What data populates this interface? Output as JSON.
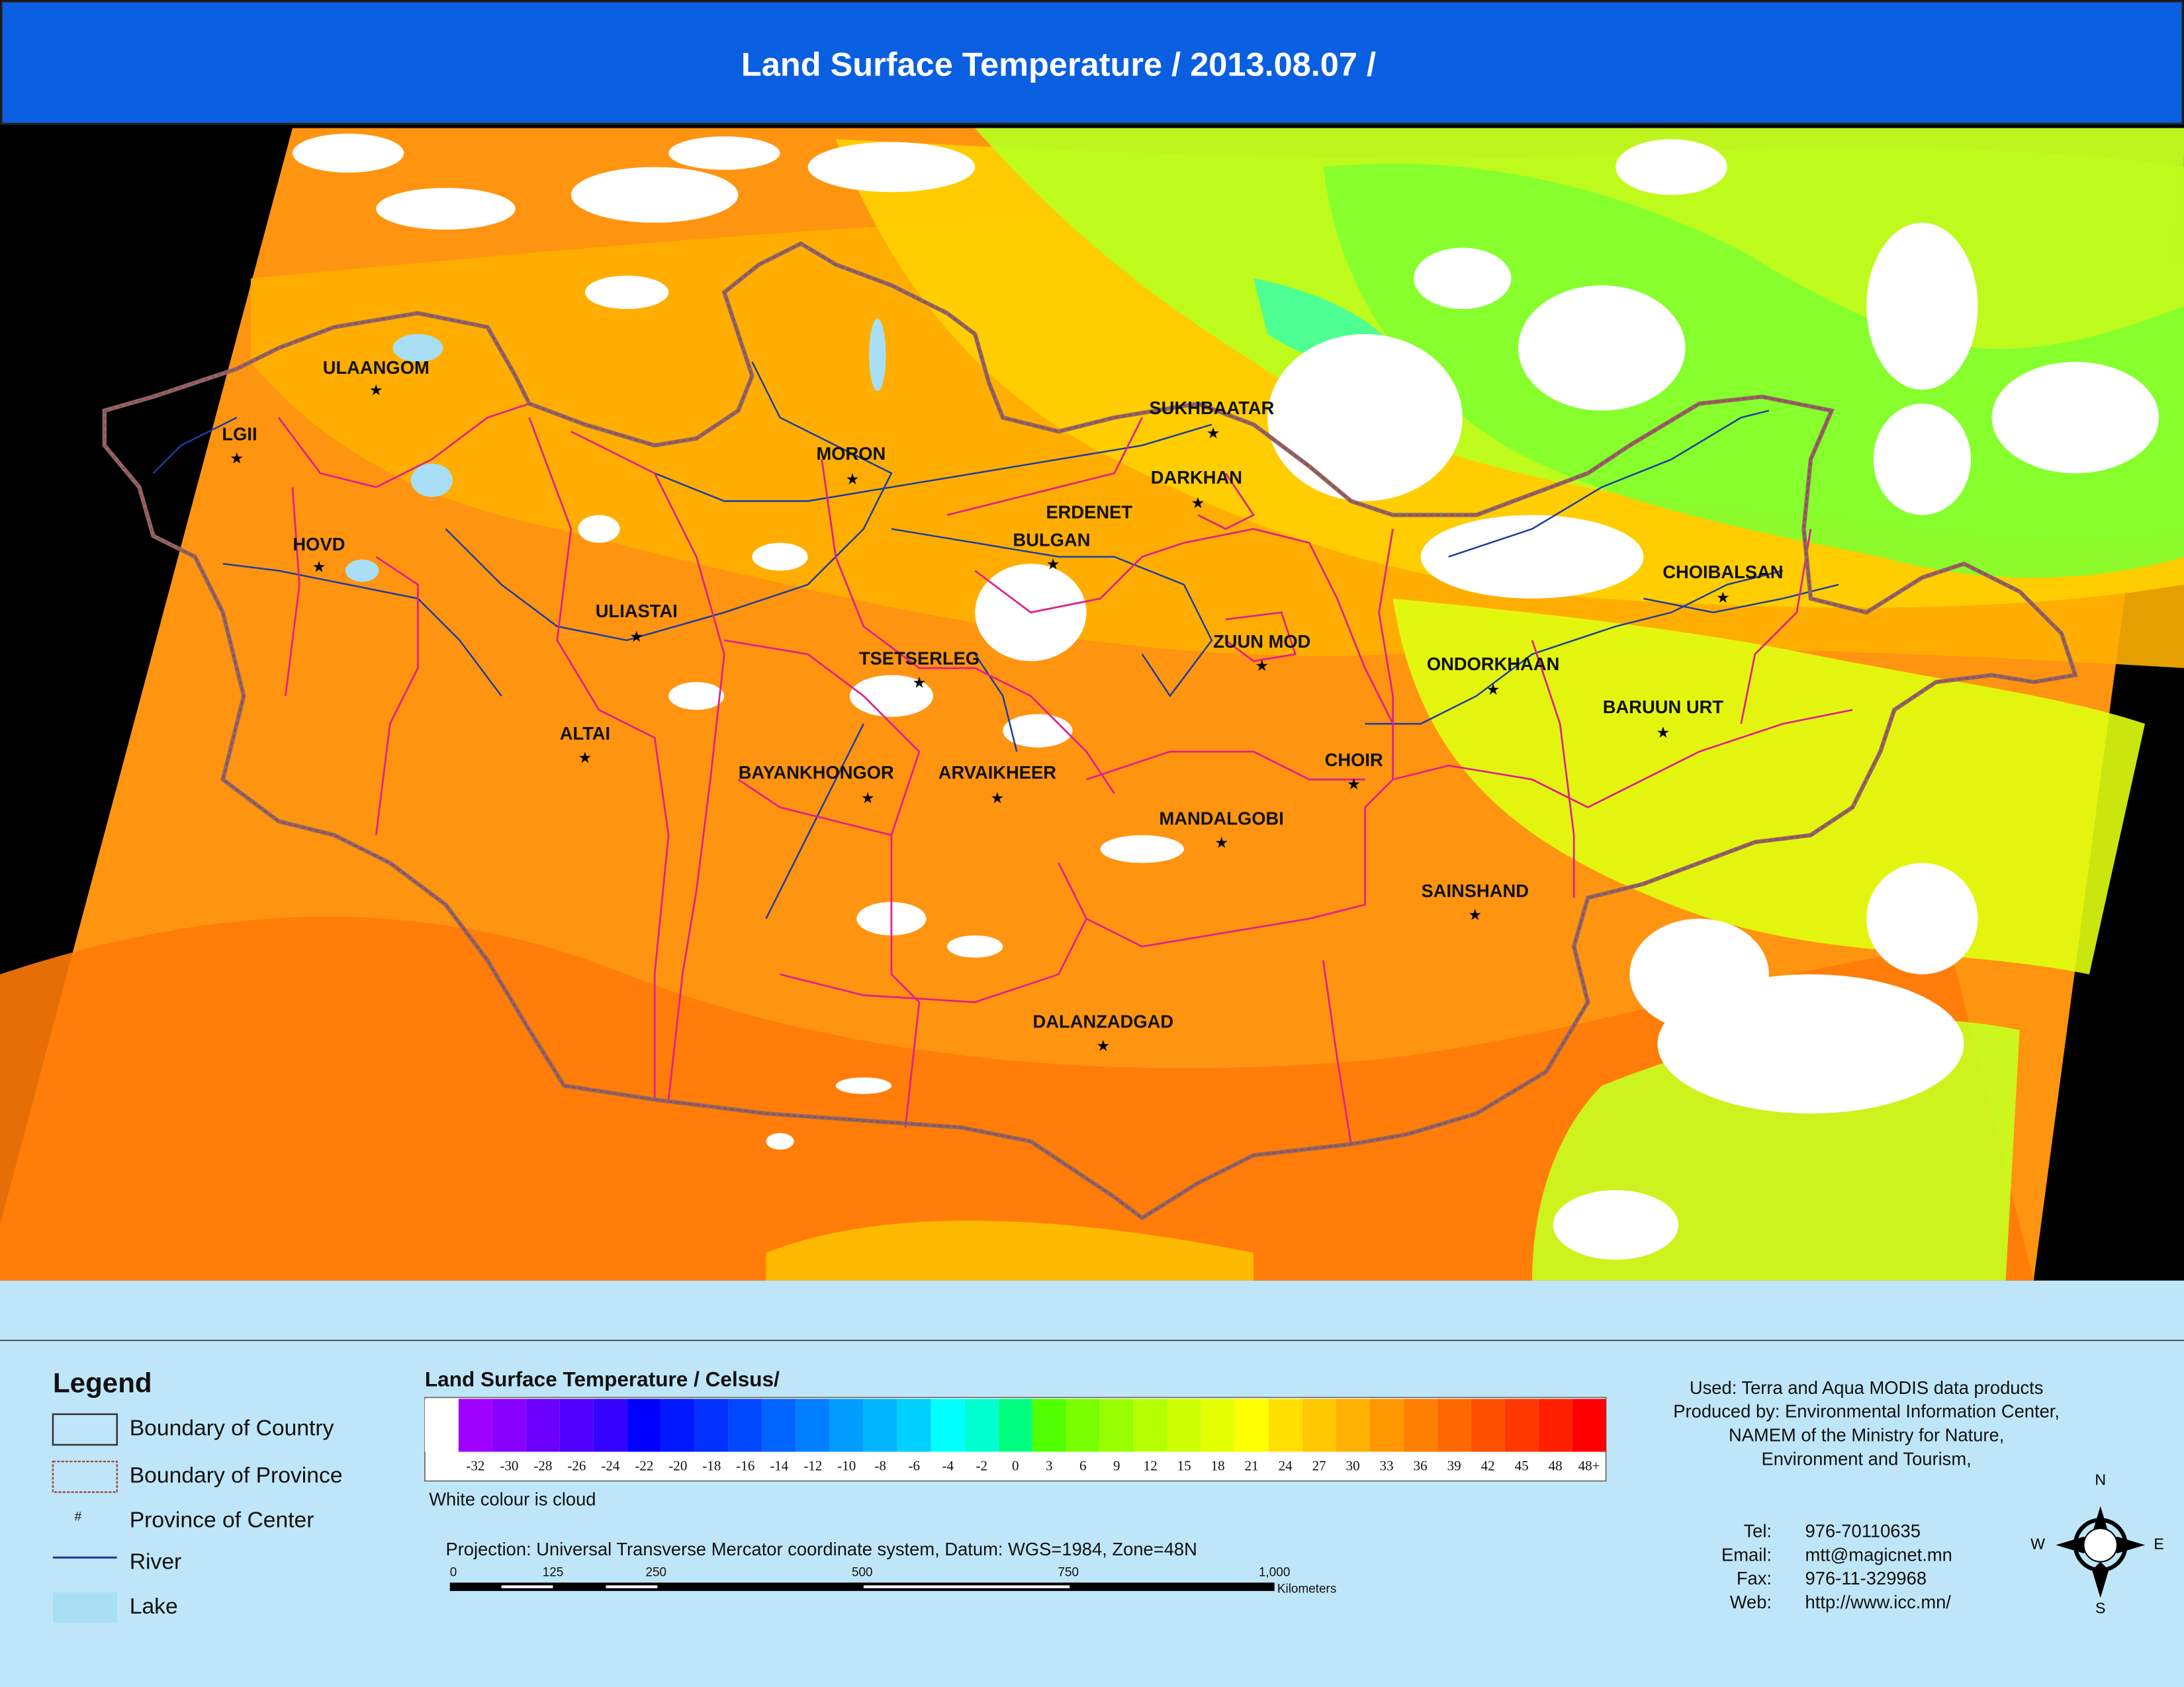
{
  "header": {
    "title": "Land Surface Temperature / 2013.08.07 /"
  },
  "map": {
    "cities": [
      {
        "label": "ULAANGOM"
      },
      {
        "label": "LGII"
      },
      {
        "label": "HOVD"
      },
      {
        "label": "MORON"
      },
      {
        "label": "SUKHBAATAR"
      },
      {
        "label": "DARKHAN"
      },
      {
        "label": "ERDENET"
      },
      {
        "label": "BULGAN"
      },
      {
        "label": "ULIASTAI"
      },
      {
        "label": "TSETSERLEG"
      },
      {
        "label": "ZUUN MOD"
      },
      {
        "label": "CHOIBALSAN"
      },
      {
        "label": "ONDORKHAAN"
      },
      {
        "label": "BARUUN URT"
      },
      {
        "label": "ALTAI"
      },
      {
        "label": "CHOIR"
      },
      {
        "label": "BAYANKHONGOR"
      },
      {
        "label": "ARVAIKHEER"
      },
      {
        "label": "MANDALGOBI"
      },
      {
        "label": "SAINSHAND"
      },
      {
        "label": "DALANZADGAD"
      }
    ]
  },
  "legend": {
    "title": "Legend",
    "items": [
      "Boundary of Country",
      "Boundary of Province",
      "Province of Center",
      "River",
      "Lake"
    ],
    "center_symbol": "#"
  },
  "colorbar": {
    "title": "Land Surface Temperature / Celsus/",
    "colors": [
      "#ffffff",
      "#a000ff",
      "#8800ff",
      "#6c00ff",
      "#5000ff",
      "#3400ff",
      "#0000ff",
      "#0018ff",
      "#0030ff",
      "#0048ff",
      "#0064ff",
      "#0080ff",
      "#009cff",
      "#00b4ff",
      "#00d0ff",
      "#00ffff",
      "#00ffd0",
      "#00ff80",
      "#50ff00",
      "#78ff00",
      "#98ff00",
      "#b4ff00",
      "#ccff00",
      "#e4ff00",
      "#ffff00",
      "#ffe000",
      "#ffc800",
      "#ffb000",
      "#ff9800",
      "#ff8000",
      "#ff6800",
      "#ff5000",
      "#ff3800",
      "#ff2000",
      "#ff0000"
    ],
    "labels": [
      -32,
      -30,
      -28,
      -26,
      -24,
      -22,
      -20,
      -18,
      -16,
      -14,
      -12,
      -10,
      -8,
      -6,
      -4,
      -2,
      0,
      3,
      6,
      9,
      12,
      15,
      18,
      21,
      24,
      27,
      30,
      33,
      36,
      39,
      42,
      45,
      48,
      "48+"
    ],
    "note": "White colour is cloud"
  },
  "projection": "Projection: Universal Transverse Mercator coordinate system, Datum: WGS=1984, Zone=48N",
  "scalebar": {
    "labels": [
      "0",
      "125",
      "250",
      "500",
      "750",
      "1,000"
    ],
    "unit": "Kilometers"
  },
  "credits": [
    "Used: Terra and Aqua MODIS data products",
    "Produced by: Environmental Information Center,",
    "NAMEM of the Ministry for Nature,",
    "Environment and Tourism,"
  ],
  "contacts": [
    {
      "label": "Tel:",
      "value": "976-70110635"
    },
    {
      "label": "Email:",
      "value": "mtt@magicnet.mn"
    },
    {
      "label": "Fax:",
      "value": "976-11-329968"
    },
    {
      "label": "Web:",
      "value": "http://www.icc.mn/"
    }
  ],
  "compass": {
    "n": "N",
    "e": "E",
    "s": "S",
    "w": "W"
  }
}
